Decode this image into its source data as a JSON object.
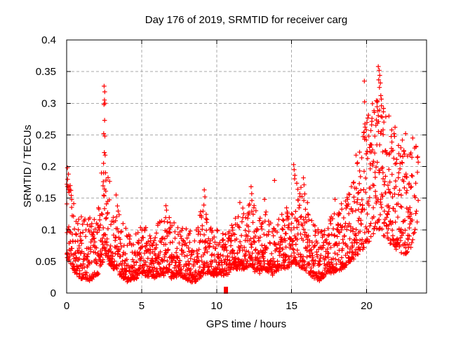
{
  "chart_data": {
    "type": "scatter",
    "title": "Day 176 of 2019, SRMTID for receiver carg",
    "xlabel": "GPS time / hours",
    "ylabel": "SRMTID / TECUs",
    "xlim": [
      0,
      24
    ],
    "ylim": [
      0,
      0.4
    ],
    "xticks": [
      {
        "v": 0,
        "label": "0"
      },
      {
        "v": 5,
        "label": "5"
      },
      {
        "v": 10,
        "label": "10"
      },
      {
        "v": 15,
        "label": "15"
      },
      {
        "v": 20,
        "label": "20"
      }
    ],
    "yticks": [
      {
        "v": 0,
        "label": "0"
      },
      {
        "v": 0.05,
        "label": "0.05"
      },
      {
        "v": 0.1,
        "label": "0.1"
      },
      {
        "v": 0.15,
        "label": "0.15"
      },
      {
        "v": 0.2,
        "label": "0.2"
      },
      {
        "v": 0.25,
        "label": "0.25"
      },
      {
        "v": 0.3,
        "label": "0.3"
      },
      {
        "v": 0.35,
        "label": "0.35"
      },
      {
        "v": 0.4,
        "label": "0.4"
      }
    ],
    "grid": true,
    "legend": "none",
    "marker": "plus",
    "marker_color": "#ff0000",
    "grid_color": "#aaaaaa",
    "axis_color": "#000000",
    "background": "#ffffff",
    "envelope_hours_lo_hi": [
      [
        0.0,
        0.05,
        0.2
      ],
      [
        0.35,
        0.04,
        0.16
      ],
      [
        0.8,
        0.025,
        0.13
      ],
      [
        1.5,
        0.02,
        0.12
      ],
      [
        2.1,
        0.03,
        0.13
      ],
      [
        2.4,
        0.05,
        0.22
      ],
      [
        2.6,
        0.06,
        0.22
      ],
      [
        2.8,
        0.05,
        0.19
      ],
      [
        3.1,
        0.04,
        0.16
      ],
      [
        3.5,
        0.03,
        0.14
      ],
      [
        4.0,
        0.02,
        0.1
      ],
      [
        4.6,
        0.025,
        0.095
      ],
      [
        5.2,
        0.03,
        0.11
      ],
      [
        5.8,
        0.025,
        0.1
      ],
      [
        6.3,
        0.03,
        0.12
      ],
      [
        6.65,
        0.03,
        0.135
      ],
      [
        7.0,
        0.025,
        0.11
      ],
      [
        7.5,
        0.03,
        0.115
      ],
      [
        8.1,
        0.02,
        0.1
      ],
      [
        8.6,
        0.02,
        0.095
      ],
      [
        9.15,
        0.03,
        0.155
      ],
      [
        9.5,
        0.03,
        0.11
      ],
      [
        10.1,
        0.03,
        0.1
      ],
      [
        10.7,
        0.03,
        0.1
      ],
      [
        11.1,
        0.04,
        0.11
      ],
      [
        11.55,
        0.04,
        0.14
      ],
      [
        12.0,
        0.04,
        0.125
      ],
      [
        12.3,
        0.04,
        0.165
      ],
      [
        12.8,
        0.03,
        0.12
      ],
      [
        13.2,
        0.04,
        0.145
      ],
      [
        13.7,
        0.03,
        0.11
      ],
      [
        14.2,
        0.04,
        0.12
      ],
      [
        14.75,
        0.04,
        0.135
      ],
      [
        15.15,
        0.05,
        0.19
      ],
      [
        15.45,
        0.045,
        0.17
      ],
      [
        15.8,
        0.04,
        0.18
      ],
      [
        16.2,
        0.03,
        0.12
      ],
      [
        16.8,
        0.02,
        0.1
      ],
      [
        17.3,
        0.03,
        0.11
      ],
      [
        17.9,
        0.035,
        0.145
      ],
      [
        18.4,
        0.04,
        0.135
      ],
      [
        18.9,
        0.05,
        0.165
      ],
      [
        19.4,
        0.06,
        0.21
      ],
      [
        19.8,
        0.07,
        0.26
      ],
      [
        20.2,
        0.08,
        0.29
      ],
      [
        20.55,
        0.1,
        0.31
      ],
      [
        20.9,
        0.1,
        0.32
      ],
      [
        21.2,
        0.09,
        0.3
      ],
      [
        21.6,
        0.08,
        0.27
      ],
      [
        22.0,
        0.07,
        0.25
      ],
      [
        22.5,
        0.06,
        0.24
      ],
      [
        22.9,
        0.07,
        0.23
      ],
      [
        23.15,
        0.09,
        0.24
      ],
      [
        23.45,
        0.12,
        0.23
      ]
    ],
    "special_points": [
      [
        0.05,
        0.198
      ],
      [
        0.12,
        0.188
      ],
      [
        0.02,
        0.172
      ],
      [
        2.44,
        0.176
      ],
      [
        2.46,
        0.205
      ],
      [
        2.47,
        0.252
      ],
      [
        2.49,
        0.298
      ],
      [
        2.5,
        0.327
      ],
      [
        2.51,
        0.222
      ],
      [
        2.52,
        0.305
      ],
      [
        2.53,
        0.273
      ],
      [
        2.54,
        0.318
      ],
      [
        2.55,
        0.248
      ],
      [
        2.56,
        0.3
      ],
      [
        2.57,
        0.218
      ],
      [
        2.59,
        0.19
      ],
      [
        2.61,
        0.161
      ],
      [
        3.3,
        0.155
      ],
      [
        6.62,
        0.138
      ],
      [
        6.66,
        0.131
      ],
      [
        9.18,
        0.163
      ],
      [
        9.22,
        0.152
      ],
      [
        11.55,
        0.143
      ],
      [
        12.3,
        0.168
      ],
      [
        12.34,
        0.157
      ],
      [
        13.2,
        0.148
      ],
      [
        13.86,
        0.178
      ],
      [
        15.14,
        0.203
      ],
      [
        15.17,
        0.195
      ],
      [
        15.22,
        0.186
      ],
      [
        15.79,
        0.182
      ],
      [
        15.83,
        0.171
      ],
      [
        17.9,
        0.148
      ],
      [
        18.32,
        0.141
      ],
      [
        19.3,
        0.218
      ],
      [
        19.85,
        0.335
      ],
      [
        19.87,
        0.302
      ],
      [
        20.55,
        0.248
      ],
      [
        20.62,
        0.265
      ],
      [
        20.7,
        0.302
      ],
      [
        20.75,
        0.288
      ],
      [
        20.78,
        0.358
      ],
      [
        20.81,
        0.337
      ],
      [
        20.84,
        0.352
      ],
      [
        20.86,
        0.325
      ],
      [
        20.88,
        0.344
      ],
      [
        20.92,
        0.332
      ],
      [
        20.95,
        0.312
      ],
      [
        20.99,
        0.296
      ],
      [
        21.05,
        0.278
      ],
      [
        21.1,
        0.258
      ],
      [
        21.9,
        0.262
      ],
      [
        22.6,
        0.252
      ],
      [
        23.08,
        0.245
      ],
      [
        23.3,
        0.231
      ]
    ],
    "zero_marker": {
      "x": 10.62,
      "y": 0
    },
    "generation": {
      "seed": 20190176,
      "count": 2200,
      "x_end": 23.45,
      "x_jitter": 0.02,
      "y_noise": 0.006,
      "skew_segments": [
        {
          "until": 0.4,
          "k": 1.6
        },
        {
          "until": 19.5,
          "k": 2.3
        },
        {
          "until": 24.0,
          "k": 1.7
        }
      ],
      "outlier_fraction": 0.05,
      "thin_after": 23.0,
      "thin_keep": 0.45
    }
  }
}
